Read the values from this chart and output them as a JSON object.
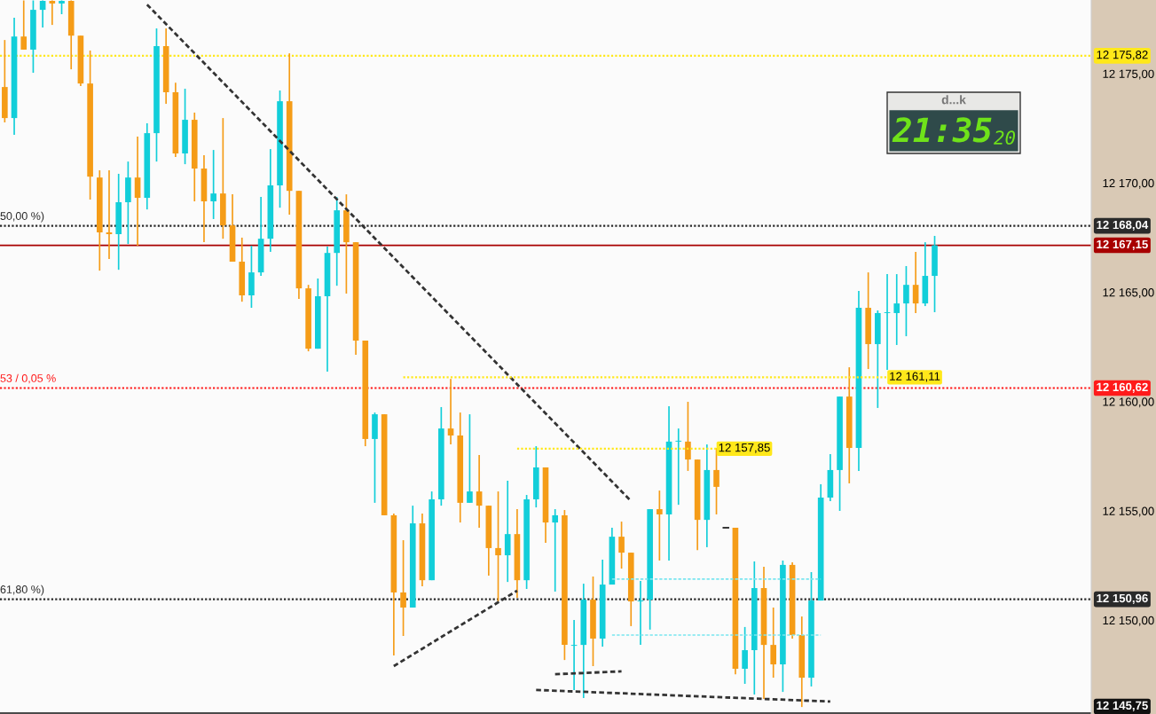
{
  "chart_data": {
    "type": "candlestick",
    "categories": [
      null,
      null,
      null,
      null,
      null,
      null,
      null,
      null,
      null,
      null,
      null,
      null,
      null,
      null,
      null,
      null,
      null,
      null,
      null,
      null,
      null,
      null,
      null,
      null,
      null,
      null,
      null,
      null,
      null,
      null,
      null,
      null,
      null,
      null,
      null,
      null,
      null,
      null,
      null,
      null,
      null,
      null,
      null,
      null,
      null,
      null,
      null,
      null,
      null,
      null,
      null,
      null,
      null,
      null,
      null,
      null,
      null,
      null,
      null,
      null,
      null,
      null,
      null,
      null,
      null,
      null,
      null,
      null,
      null,
      null,
      null,
      null,
      null,
      null,
      null,
      null,
      null,
      null,
      null,
      null,
      null,
      null,
      null,
      null,
      null,
      null,
      null,
      null,
      null,
      null,
      null,
      null,
      null,
      null,
      null,
      null,
      null,
      null,
      null,
      null,
      null,
      null,
      null,
      null,
      null,
      null,
      null,
      null,
      null,
      null,
      null,
      null,
      null,
      null,
      null
    ],
    "ohlc": [
      [
        12174.39,
        12176.54,
        12172.77,
        12172.97
      ],
      [
        12172.97,
        12177.56,
        12172.2,
        12176.7
      ],
      [
        12176.7,
        12178.35,
        12176.1,
        12176.1
      ],
      [
        12176.1,
        12178.35,
        12175.04,
        12177.92
      ],
      [
        12177.92,
        12178.35,
        12177.11,
        12178.33
      ],
      [
        12178.33,
        12178.35,
        12177.23,
        12178.21
      ],
      [
        12178.21,
        12178.35,
        12177.72,
        12178.33
      ],
      [
        12178.33,
        12178.35,
        12175.2,
        12176.74
      ],
      [
        12176.74,
        12176.74,
        12174.43,
        12174.55
      ],
      [
        12174.55,
        12176.06,
        12169.24,
        12170.29
      ],
      [
        12170.25,
        12170.58,
        12165.99,
        12167.74
      ],
      [
        12167.74,
        12170.58,
        12166.52,
        12167.66
      ],
      [
        12167.66,
        12170.42,
        12166.03,
        12169.12
      ],
      [
        12169.12,
        12170.98,
        12167.21,
        12170.25
      ],
      [
        12170.25,
        12172.12,
        12167.13,
        12169.32
      ],
      [
        12169.32,
        12172.73,
        12168.79,
        12172.28
      ],
      [
        12172.28,
        12177.07,
        12170.98,
        12176.26
      ],
      [
        12176.26,
        12177.07,
        12173.62,
        12174.15
      ],
      [
        12174.15,
        12174.59,
        12171.19,
        12171.35
      ],
      [
        12171.35,
        12174.31,
        12170.86,
        12172.89
      ],
      [
        12172.89,
        12173.22,
        12169.16,
        12170.66
      ],
      [
        12170.66,
        12171.27,
        12167.29,
        12169.16
      ],
      [
        12169.16,
        12171.51,
        12168.35,
        12169.52
      ],
      [
        12169.52,
        12172.97,
        12167.45,
        12168.06
      ],
      [
        12168.06,
        12169.48,
        12166.4,
        12166.4
      ],
      [
        12166.4,
        12167.5,
        12164.57,
        12164.86
      ],
      [
        12164.86,
        12167.13,
        12164.29,
        12165.91
      ],
      [
        12165.91,
        12169.36,
        12165.75,
        12167.45
      ],
      [
        12167.45,
        12171.55,
        12166.85,
        12169.89
      ],
      [
        12169.89,
        12174.23,
        12168.87,
        12173.74
      ],
      [
        12173.74,
        12175.93,
        12168.55,
        12169.64
      ],
      [
        12169.64,
        12169.64,
        12164.7,
        12165.18
      ],
      [
        12165.18,
        12165.34,
        12162.3,
        12162.42
      ],
      [
        12162.42,
        12165.63,
        12162.42,
        12164.82
      ],
      [
        12164.82,
        12167.09,
        12161.37,
        12166.8
      ],
      [
        12166.8,
        12169.36,
        12165.3,
        12168.75
      ],
      [
        12168.75,
        12169.48,
        12164.94,
        12167.29
      ],
      [
        12167.29,
        12167.29,
        12162.14,
        12162.79
      ],
      [
        12162.79,
        12162.79,
        12157.96,
        12158.29
      ],
      [
        12158.29,
        12159.5,
        12155.37,
        12159.42
      ],
      [
        12159.42,
        12159.42,
        12154.8,
        12154.8
      ],
      [
        12154.8,
        12154.88,
        12148.39,
        12151.27
      ],
      [
        12151.27,
        12153.66,
        12149.28,
        12150.58
      ],
      [
        12150.58,
        12155.24,
        12150.58,
        12154.43
      ],
      [
        12154.43,
        12154.88,
        12151.55,
        12151.83
      ],
      [
        12151.83,
        12155.89,
        12151.83,
        12155.53
      ],
      [
        12155.53,
        12159.75,
        12155.24,
        12158.77
      ],
      [
        12158.77,
        12161.04,
        12158.04,
        12158.45
      ],
      [
        12158.45,
        12159.5,
        12154.47,
        12155.37
      ],
      [
        12155.37,
        12159.42,
        12155.37,
        12155.89
      ],
      [
        12155.89,
        12157.56,
        12154.23,
        12155.24
      ],
      [
        12155.24,
        12155.24,
        12152.04,
        12153.3
      ],
      [
        12153.3,
        12155.89,
        12150.86,
        12152.97
      ],
      [
        12152.97,
        12156.38,
        12151.75,
        12153.94
      ],
      [
        12153.94,
        12155.08,
        12151.02,
        12151.83
      ],
      [
        12151.83,
        12155.73,
        12151.43,
        12155.53
      ],
      [
        12155.53,
        12157.96,
        12155.16,
        12156.99
      ],
      [
        12156.99,
        12156.99,
        12153.54,
        12154.47
      ],
      [
        12154.47,
        12155.08,
        12151.31,
        12154.8
      ],
      [
        12154.8,
        12155.04,
        12148.18,
        12148.87
      ],
      [
        12148.83,
        12150.01,
        12146.81,
        12148.87
      ],
      [
        12148.87,
        12151.67,
        12146.44,
        12150.94
      ],
      [
        12150.94,
        12152.0,
        12147.9,
        12149.16
      ],
      [
        12149.16,
        12152.77,
        12148.79,
        12151.63
      ],
      [
        12151.63,
        12154.23,
        12151.63,
        12153.82
      ],
      [
        12153.82,
        12154.51,
        12152.36,
        12153.09
      ],
      [
        12153.09,
        12153.09,
        12149.73,
        12150.86
      ],
      [
        12150.86,
        12151.8,
        12148.87,
        12150.9
      ],
      [
        12150.94,
        12155.08,
        12149.57,
        12155.08
      ],
      [
        12155.08,
        12155.93,
        12152.73,
        12154.84
      ],
      [
        12154.84,
        12159.79,
        12152.73,
        12158.17
      ],
      [
        12158.17,
        12158.77,
        12155.28,
        12158.21
      ],
      [
        12158.17,
        12159.99,
        12156.83,
        12157.35
      ],
      [
        12157.35,
        12157.35,
        12153.21,
        12154.59
      ],
      [
        12154.59,
        12158.04,
        12153.34,
        12156.87
      ],
      [
        12156.87,
        12157.88,
        12154.84,
        12156.1
      ],
      [
        12154.23,
        12154.23,
        12154.23,
        12154.23
      ],
      [
        12154.23,
        12154.23,
        12147.53,
        12147.78
      ],
      [
        12147.78,
        12149.69,
        12147.09,
        12148.63
      ],
      [
        12148.63,
        12152.69,
        12146.6,
        12151.47
      ],
      [
        12151.47,
        12152.44,
        12146.4,
        12148.87
      ],
      [
        12148.87,
        12150.58,
        12147.37,
        12147.98
      ],
      [
        12147.98,
        12152.73,
        12146.72,
        12152.53
      ],
      [
        12152.53,
        12152.65,
        12149.16,
        12149.32
      ],
      [
        12149.32,
        12150.17,
        12146.03,
        12147.37
      ],
      [
        12147.37,
        12152.2,
        12146.97,
        12150.9
      ],
      [
        12150.9,
        12156.22,
        12150.9,
        12155.61
      ],
      [
        12155.61,
        12157.6,
        12155.45,
        12156.87
      ],
      [
        12156.87,
        12160.23,
        12155.0,
        12160.23
      ],
      [
        12160.23,
        12161.57,
        12156.26,
        12157.88
      ],
      [
        12157.88,
        12165.06,
        12156.83,
        12164.29
      ],
      [
        12164.29,
        12165.91,
        12161.49,
        12162.63
      ],
      [
        12162.63,
        12164.17,
        12159.71,
        12164.05
      ],
      [
        12164.05,
        12165.83,
        12161.45,
        12164.09
      ],
      [
        12164.05,
        12165.83,
        12162.59,
        12164.49
      ],
      [
        12164.49,
        12166.2,
        12162.99,
        12165.34
      ],
      [
        12165.34,
        12166.85,
        12164.05,
        12164.49
      ],
      [
        12164.49,
        12167.29,
        12164.37,
        12165.75
      ],
      [
        12165.75,
        12167.58,
        12164.09,
        12167.15
      ],
      null,
      null,
      null,
      null,
      null,
      null,
      null,
      null,
      null,
      null,
      null,
      null,
      null,
      null,
      null,
      null
    ],
    "colors": [
      "#f59c17",
      "#12ced9",
      "#f59c17",
      "#12ced9",
      "#12ced9",
      "#f59c17",
      "#12ced9",
      "#f59c17",
      "#f59c17",
      "#f59c17",
      "#f59c17",
      "#f59c17",
      "#12ced9",
      "#12ced9",
      "#f59c17",
      "#12ced9",
      "#12ced9",
      "#f59c17",
      "#f59c17",
      "#12ced9",
      "#f59c17",
      "#f59c17",
      "#12ced9",
      "#f59c17",
      "#f59c17",
      "#f59c17",
      "#12ced9",
      "#12ced9",
      "#12ced9",
      "#12ced9",
      "#f59c17",
      "#f59c17",
      "#f59c17",
      "#12ced9",
      "#12ced9",
      "#12ced9",
      "#f59c17",
      "#f59c17",
      "#f59c17",
      "#12ced9",
      "#f59c17",
      "#f59c17",
      "#f59c17",
      "#12ced9",
      "#f59c17",
      "#12ced9",
      "#12ced9",
      "#f59c17",
      "#f59c17",
      "#12ced9",
      "#f59c17",
      "#f59c17",
      "#f59c17",
      "#12ced9",
      "#f59c17",
      "#12ced9",
      "#12ced9",
      "#f59c17",
      "#12ced9",
      "#f59c17",
      "#12ced9",
      "#12ced9",
      "#f59c17",
      "#12ced9",
      "#12ced9",
      "#f59c17",
      "#f59c17",
      "#12ced9",
      "#12ced9",
      "#f59c17",
      "#12ced9",
      "#12ced9",
      "#f59c17",
      "#f59c17",
      "#12ced9",
      "#f59c17",
      "#111111",
      "#f59c17",
      "#12ced9",
      "#12ced9",
      "#f59c17",
      "#f59c17",
      "#12ced9",
      "#f59c17",
      "#f59c17",
      "#12ced9",
      "#12ced9",
      "#12ced9",
      "#12ced9",
      "#f59c17",
      "#12ced9",
      "#f59c17",
      "#12ced9",
      "#12ced9",
      "#12ced9",
      "#12ced9",
      "#f59c17",
      "#12ced9",
      "#12ced9",
      null,
      null,
      null,
      null,
      null,
      null,
      null,
      null,
      null,
      null,
      null,
      null,
      null,
      null,
      null,
      null
    ],
    "series": [
      {
        "type": "line",
        "color": "#333333",
        "line_style": "dashed",
        "values": [
          null,
          null,
          null,
          null,
          null,
          null,
          null,
          null,
          null,
          null,
          null,
          null,
          null,
          null,
          null,
          12178.16,
          null,
          null,
          null,
          null,
          null,
          null,
          null,
          null,
          null,
          null,
          null,
          null,
          null,
          null,
          null,
          null,
          null,
          null,
          null,
          null,
          null,
          null,
          null,
          null,
          null,
          null,
          null,
          null,
          null,
          null,
          null,
          null,
          null,
          null,
          null,
          null,
          null,
          null,
          null,
          null,
          null,
          null,
          null,
          null,
          null,
          null,
          null,
          null,
          null,
          null,
          12155.45,
          null,
          null,
          null,
          null,
          null,
          null,
          null,
          null,
          null,
          null,
          null,
          null,
          null,
          null,
          null,
          null,
          null,
          null,
          null,
          null,
          null,
          null,
          null,
          null,
          null,
          null,
          null,
          null,
          null,
          null,
          null,
          null,
          null,
          null,
          null,
          null,
          null,
          null,
          null,
          null,
          null,
          null,
          null,
          null,
          null,
          null,
          null,
          null
        ]
      },
      {
        "type": "line",
        "color": "#333333",
        "line_style": "dashed",
        "values": [
          null,
          null,
          null,
          null,
          null,
          null,
          null,
          null,
          null,
          null,
          null,
          null,
          null,
          null,
          null,
          null,
          null,
          null,
          null,
          null,
          null,
          null,
          null,
          null,
          null,
          null,
          null,
          null,
          null,
          null,
          null,
          null,
          null,
          null,
          null,
          null,
          null,
          null,
          null,
          null,
          null,
          12147.9,
          null,
          null,
          null,
          null,
          null,
          null,
          null,
          null,
          null,
          null,
          null,
          null,
          12151.35,
          null,
          null,
          null,
          null,
          null,
          null,
          null,
          null,
          null,
          null,
          null,
          null,
          null,
          null,
          null,
          null,
          null,
          null,
          null,
          null,
          null,
          null,
          null,
          null,
          null,
          null,
          null,
          null,
          null,
          null,
          null,
          null,
          null,
          null,
          null,
          null,
          null,
          null,
          null,
          null,
          null,
          null,
          null,
          null,
          null,
          null,
          null,
          null,
          null,
          null,
          null,
          null,
          null,
          null,
          null,
          null,
          null,
          null,
          null,
          null
        ]
      },
      {
        "type": "line",
        "color": "#333333",
        "line_style": "dashed",
        "values": [
          null,
          null,
          null,
          null,
          null,
          null,
          null,
          null,
          null,
          null,
          null,
          null,
          null,
          null,
          null,
          null,
          null,
          null,
          null,
          null,
          null,
          null,
          null,
          null,
          null,
          null,
          null,
          null,
          null,
          null,
          null,
          null,
          null,
          null,
          null,
          null,
          null,
          null,
          null,
          null,
          null,
          null,
          null,
          null,
          null,
          null,
          null,
          null,
          null,
          null,
          null,
          null,
          null,
          null,
          null,
          null,
          null,
          null,
          12147.53,
          null,
          null,
          null,
          null,
          null,
          null,
          12147.66,
          null,
          null,
          null,
          null,
          null,
          null,
          null,
          null,
          null,
          null,
          null,
          null,
          null,
          null,
          null,
          null,
          null,
          null,
          null,
          null,
          null,
          null,
          null,
          null,
          null,
          null,
          null,
          null,
          null,
          null,
          null,
          null,
          null,
          null,
          null,
          null,
          null,
          null,
          null,
          null,
          null,
          null,
          null,
          null,
          null,
          null,
          null,
          null,
          null
        ]
      },
      {
        "type": "line",
        "color": "#333333",
        "line_style": "dashed",
        "values": [
          null,
          null,
          null,
          null,
          null,
          null,
          null,
          null,
          null,
          null,
          null,
          null,
          null,
          null,
          null,
          null,
          null,
          null,
          null,
          null,
          null,
          null,
          null,
          null,
          null,
          null,
          null,
          null,
          null,
          null,
          null,
          null,
          null,
          null,
          null,
          null,
          null,
          null,
          null,
          null,
          null,
          null,
          null,
          null,
          null,
          null,
          null,
          null,
          null,
          null,
          null,
          null,
          null,
          null,
          null,
          null,
          12146.81,
          null,
          null,
          null,
          null,
          null,
          null,
          null,
          null,
          null,
          null,
          null,
          null,
          null,
          null,
          null,
          null,
          null,
          null,
          null,
          null,
          null,
          null,
          null,
          null,
          null,
          null,
          null,
          null,
          null,
          null,
          12146.28,
          null,
          null,
          null,
          null,
          null,
          null,
          null,
          null,
          null,
          null,
          null,
          null,
          null,
          null,
          null,
          null,
          null,
          null,
          null,
          null,
          null,
          null,
          null,
          null,
          null,
          null,
          null
        ]
      },
      {
        "type": "line",
        "name": "12 161,11",
        "color": "#ffe81a",
        "line_style": "dotted",
        "values": [
          null,
          null,
          null,
          null,
          null,
          null,
          null,
          null,
          null,
          null,
          null,
          null,
          null,
          null,
          null,
          null,
          null,
          null,
          null,
          null,
          null,
          null,
          null,
          null,
          null,
          null,
          null,
          null,
          null,
          null,
          null,
          null,
          null,
          null,
          null,
          null,
          null,
          null,
          null,
          null,
          null,
          null,
          12161.11,
          12161.11,
          12161.11,
          12161.11,
          12161.11,
          12161.11,
          12161.11,
          12161.11,
          12161.11,
          12161.11,
          12161.11,
          12161.11,
          12161.11,
          12161.11,
          12161.11,
          12161.11,
          12161.11,
          12161.11,
          12161.11,
          12161.11,
          12161.11,
          12161.11,
          12161.11,
          12161.11,
          12161.11,
          12161.11,
          12161.11,
          12161.11,
          12161.11,
          12161.11,
          12161.11,
          12161.11,
          12161.11,
          12161.11,
          12161.11,
          12161.11,
          12161.11,
          12161.11,
          12161.11,
          12161.11,
          12161.11,
          12161.11,
          12161.11,
          12161.11,
          12161.11,
          12161.11,
          12161.11,
          12161.11,
          12161.11,
          12161.11,
          12161.11,
          12161.11,
          null,
          null,
          null,
          null,
          null,
          null,
          null,
          null,
          null,
          null,
          null,
          null,
          null,
          null,
          null,
          null,
          null,
          null,
          null,
          null,
          null
        ]
      },
      {
        "type": "line",
        "name": "12 157,85",
        "color": "#ffe81a",
        "line_style": "dotted",
        "values": [
          null,
          null,
          null,
          null,
          null,
          null,
          null,
          null,
          null,
          null,
          null,
          null,
          null,
          null,
          null,
          null,
          null,
          null,
          null,
          null,
          null,
          null,
          null,
          null,
          null,
          null,
          null,
          null,
          null,
          null,
          null,
          null,
          null,
          null,
          null,
          null,
          null,
          null,
          null,
          null,
          null,
          null,
          null,
          null,
          null,
          null,
          null,
          null,
          null,
          null,
          null,
          null,
          null,
          null,
          12157.85,
          12157.85,
          12157.85,
          12157.85,
          12157.85,
          12157.85,
          12157.85,
          12157.85,
          12157.85,
          12157.85,
          12157.85,
          12157.85,
          12157.85,
          12157.85,
          12157.85,
          12157.85,
          12157.85,
          12157.85,
          12157.85,
          12157.85,
          12157.85,
          12157.85,
          null,
          null,
          null,
          null,
          null,
          null,
          null,
          null,
          null,
          null,
          null,
          null,
          null,
          null,
          null,
          null,
          null,
          null,
          null,
          null,
          null,
          null,
          null,
          null,
          null,
          null,
          null,
          null,
          null,
          null,
          null,
          null,
          null,
          null,
          null,
          null,
          null,
          null,
          null
        ]
      },
      {
        "type": "line",
        "color": "#7ae6f0",
        "line_style": "dashed",
        "values": [
          null,
          null,
          null,
          null,
          null,
          null,
          null,
          null,
          null,
          null,
          null,
          null,
          null,
          null,
          null,
          null,
          null,
          null,
          null,
          null,
          null,
          null,
          null,
          null,
          null,
          null,
          null,
          null,
          null,
          null,
          null,
          null,
          null,
          null,
          null,
          null,
          null,
          null,
          null,
          null,
          null,
          null,
          null,
          null,
          null,
          null,
          null,
          null,
          null,
          null,
          null,
          null,
          null,
          null,
          null,
          null,
          null,
          null,
          null,
          null,
          null,
          null,
          null,
          null,
          12151.88,
          12151.88,
          12151.88,
          12151.88,
          12151.88,
          12151.88,
          12151.88,
          12151.88,
          12151.88,
          12151.88,
          12151.88,
          12151.88,
          12151.88,
          12151.88,
          12151.88,
          12151.88,
          12151.88,
          12151.88,
          12151.88,
          12151.88,
          12151.88,
          12151.88,
          12151.88,
          null,
          null,
          null,
          null,
          null,
          null,
          null,
          null,
          null,
          null,
          null,
          null,
          null,
          null,
          null,
          null,
          null,
          null,
          null,
          null,
          null,
          null,
          null,
          null,
          null,
          null,
          null,
          null
        ]
      },
      {
        "type": "line",
        "color": "#7ae6f0",
        "line_style": "dashed",
        "values": [
          null,
          null,
          null,
          null,
          null,
          null,
          null,
          null,
          null,
          null,
          null,
          null,
          null,
          null,
          null,
          null,
          null,
          null,
          null,
          null,
          null,
          null,
          null,
          null,
          null,
          null,
          null,
          null,
          null,
          null,
          null,
          null,
          null,
          null,
          null,
          null,
          null,
          null,
          null,
          null,
          null,
          null,
          null,
          null,
          null,
          null,
          null,
          null,
          null,
          null,
          null,
          null,
          null,
          null,
          null,
          null,
          null,
          null,
          null,
          null,
          null,
          null,
          null,
          null,
          12149.32,
          12149.32,
          12149.32,
          12149.32,
          12149.32,
          12149.32,
          12149.32,
          12149.32,
          12149.32,
          12149.32,
          12149.32,
          12149.32,
          12149.32,
          12149.32,
          12149.32,
          12149.32,
          12149.32,
          12149.32,
          12149.32,
          12149.32,
          12149.32,
          12149.32,
          12149.32,
          null,
          null,
          null,
          null,
          null,
          null,
          null,
          null,
          null,
          null,
          null,
          null,
          null,
          null,
          null,
          null,
          null,
          null,
          null,
          null,
          null,
          null,
          null,
          null,
          null,
          null,
          null,
          null
        ]
      }
    ],
    "ref_lines": [
      {
        "axis": "y",
        "value": 12175.82,
        "label": "12 175,82",
        "color": "#ffe81a",
        "line_style": "dotted"
      },
      {
        "axis": "y",
        "value": 12168.04,
        "label": "12 168,04",
        "color": "#2a2a2a",
        "line_style": "dotted"
      },
      {
        "axis": "y",
        "value": 12167.15,
        "label": "12 167,15",
        "color": "#a80000",
        "line_style": "solid"
      },
      {
        "axis": "y",
        "value": 12160.62,
        "label": "12 160,62",
        "color": "#ff1a1a",
        "line_style": "dotted"
      },
      {
        "axis": "y",
        "value": 12150.96,
        "label": "12 150,96",
        "color": "#2a2a2a",
        "line_style": "dotted"
      },
      {
        "axis": "y",
        "value": 12145.75,
        "label": "12 145,75",
        "color": "#111111",
        "line_style": "solid"
      }
    ],
    "annotations": [
      {
        "text": "50,00 %)",
        "y": 12168.04
      },
      {
        "text": "53 / 0,05 %",
        "y": 12160.62
      },
      {
        "text": "61,80 %)",
        "y": 12150.96
      },
      "d...k",
      "21:35",
      "20"
    ],
    "ylim": [
      12145.71,
      12178.37
    ],
    "yticks": [
      {
        "value": 12150,
        "label": "12 150,00"
      },
      {
        "value": 12155,
        "label": "12 155,00"
      },
      {
        "value": 12160,
        "label": "12 160,00"
      },
      {
        "value": 12165,
        "label": "12 165,00"
      },
      {
        "value": 12170,
        "label": "12 170,00"
      },
      {
        "value": 12175,
        "label": "12 175,00"
      }
    ],
    "tick_labels": "y",
    "grid": false,
    "legend": false
  }
}
